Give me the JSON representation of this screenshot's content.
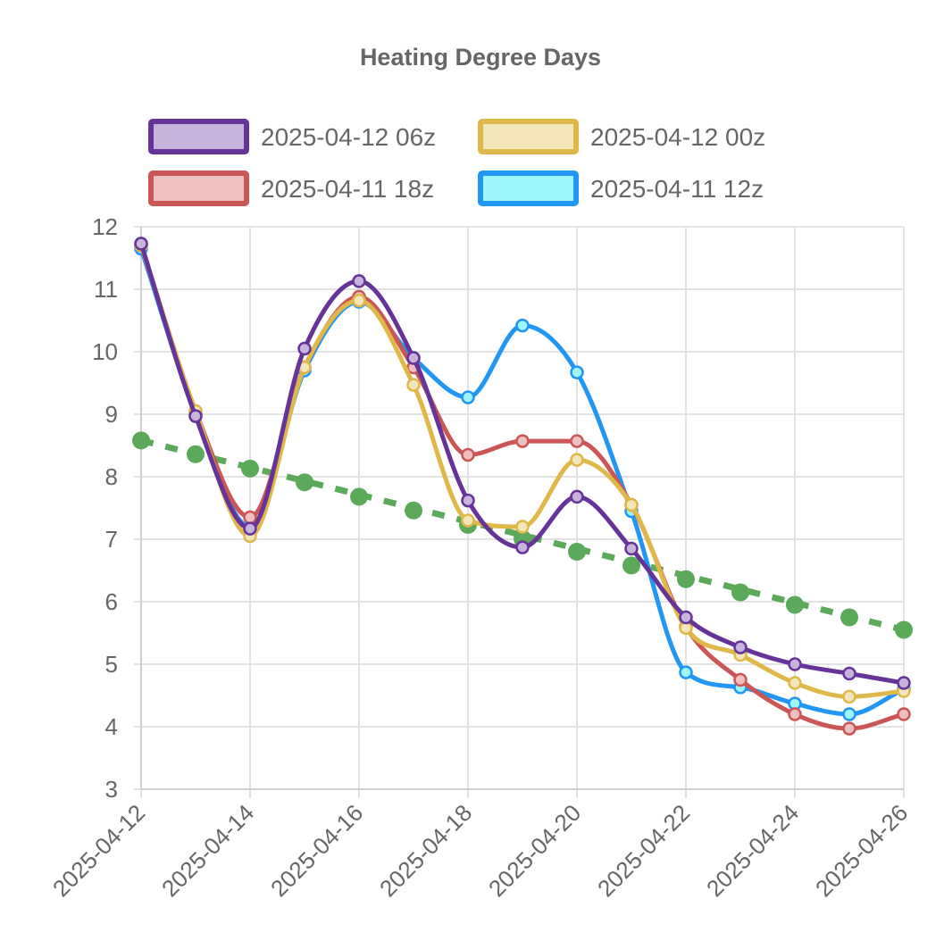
{
  "chart_data": {
    "type": "line",
    "title": "Heating Degree Days",
    "xlabel": "",
    "ylabel": "",
    "ylim": [
      3,
      12
    ],
    "yticks": [
      "3",
      "4",
      "5",
      "6",
      "7",
      "8",
      "9",
      "10",
      "11",
      "12"
    ],
    "x": [
      "2025-04-12",
      "2025-04-13",
      "2025-04-14",
      "2025-04-15",
      "2025-04-16",
      "2025-04-17",
      "2025-04-18",
      "2025-04-19",
      "2025-04-20",
      "2025-04-21",
      "2025-04-22",
      "2025-04-23",
      "2025-04-24",
      "2025-04-25",
      "2025-04-26"
    ],
    "xtick_labels": [
      "2025-04-12",
      "2025-04-14",
      "2025-04-16",
      "2025-04-18",
      "2025-04-20",
      "2025-04-22",
      "2025-04-24",
      "2025-04-26"
    ],
    "legend_placement": "top",
    "grid": true,
    "series": [
      {
        "name": "2025-04-11 12z",
        "line_color": "#2196f3",
        "fill_color": "#9ef6fc",
        "values": [
          11.65,
          9.0,
          7.2,
          9.7,
          10.8,
          9.9,
          9.27,
          10.42,
          9.67,
          7.45,
          4.87,
          4.63,
          4.37,
          4.2,
          4.6
        ]
      },
      {
        "name": "2025-04-11 18z",
        "line_color": "#cc5555",
        "fill_color": "#eec0c0",
        "values": [
          11.7,
          9.05,
          7.35,
          9.75,
          10.88,
          9.75,
          8.35,
          8.57,
          8.57,
          7.55,
          5.6,
          4.75,
          4.2,
          3.97,
          4.2
        ]
      },
      {
        "name": "2025-04-12 00z",
        "line_color": "#e0b84a",
        "fill_color": "#f3e6bb",
        "values": [
          11.7,
          9.05,
          7.05,
          9.75,
          10.82,
          9.47,
          7.3,
          7.2,
          8.27,
          7.55,
          5.58,
          5.15,
          4.7,
          4.48,
          4.57
        ]
      },
      {
        "name": "2025-04-12 06z",
        "line_color": "#663399",
        "fill_color": "#c8b3dd",
        "values": [
          11.73,
          8.97,
          7.17,
          10.05,
          11.13,
          9.9,
          7.62,
          6.87,
          7.68,
          6.85,
          5.75,
          5.27,
          5.0,
          4.85,
          4.7
        ]
      },
      {
        "name": "",
        "line_color": "#5aaa5a",
        "fill_color": "#5aaa5a",
        "dashed": true,
        "values": [
          8.58,
          8.36,
          8.13,
          7.91,
          7.68,
          7.46,
          7.23,
          7.01,
          6.8,
          6.58,
          6.36,
          6.15,
          5.95,
          5.75,
          5.55
        ]
      }
    ]
  },
  "legend": {
    "items": [
      {
        "label": "2025-04-12 06z",
        "border": "#663399",
        "fill": "#c8b3dd"
      },
      {
        "label": "2025-04-12 00z",
        "border": "#e0b84a",
        "fill": "#f3e6bb"
      },
      {
        "label": "2025-04-11 18z",
        "border": "#cc5555",
        "fill": "#eec0c0"
      },
      {
        "label": "2025-04-11 12z",
        "border": "#2196f3",
        "fill": "#9ef6fc"
      }
    ]
  }
}
